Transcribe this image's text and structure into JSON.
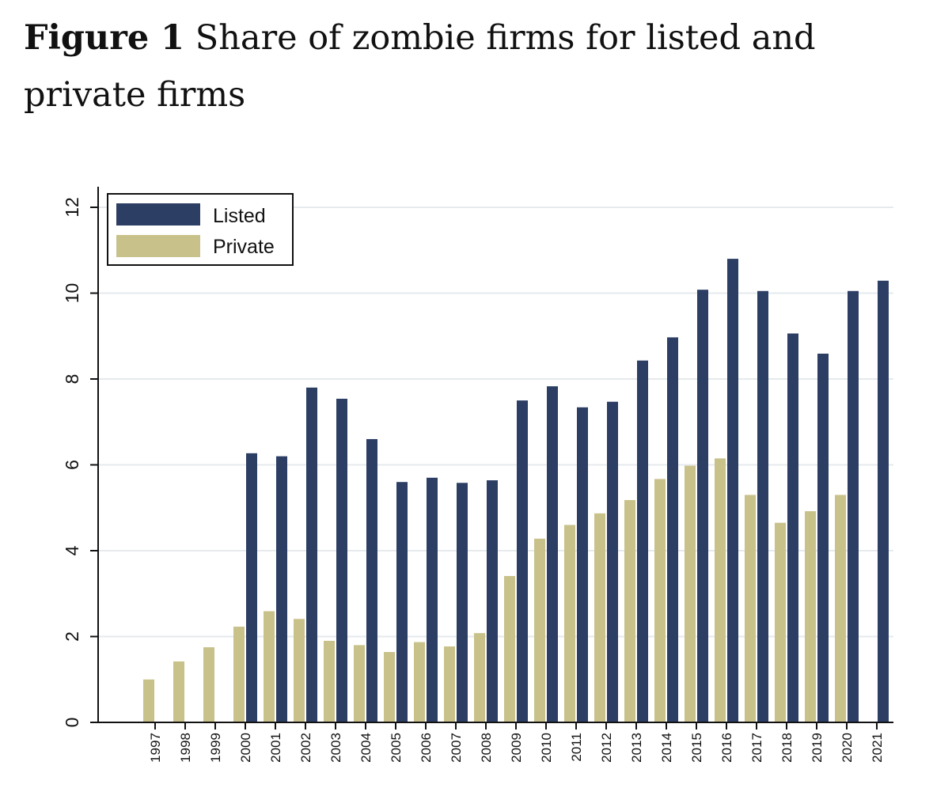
{
  "caption": {
    "label": "Figure 1",
    "text": "Share of zombie firms for listed and private firms"
  },
  "colors": {
    "listed": "#2c3e64",
    "private": "#c9c18a",
    "grid": "#e6eaec",
    "axis": "#111111"
  },
  "chart_data": {
    "type": "bar",
    "title": "",
    "xlabel": "",
    "ylabel": "",
    "ylim": [
      0,
      12.5
    ],
    "yticks": [
      0,
      2,
      4,
      6,
      8,
      10,
      12
    ],
    "grid": true,
    "legend_position": "top-left",
    "categories": [
      "1997",
      "1998",
      "1999",
      "2000",
      "2001",
      "2002",
      "2003",
      "2004",
      "2005",
      "2006",
      "2007",
      "2008",
      "2009",
      "2010",
      "2011",
      "2012",
      "2013",
      "2014",
      "2015",
      "2016",
      "2017",
      "2018",
      "2019",
      "2020",
      "2021"
    ],
    "series": [
      {
        "name": "Listed",
        "values": [
          null,
          null,
          null,
          6.27,
          6.2,
          7.8,
          7.54,
          6.6,
          5.6,
          5.7,
          5.58,
          5.64,
          7.5,
          7.83,
          7.34,
          7.47,
          8.43,
          8.97,
          10.08,
          10.8,
          10.05,
          9.06,
          8.59,
          10.05,
          10.29
        ]
      },
      {
        "name": "Private",
        "values": [
          1.0,
          1.42,
          1.75,
          2.23,
          2.59,
          2.41,
          1.9,
          1.8,
          1.64,
          1.87,
          1.77,
          2.08,
          3.41,
          4.28,
          4.6,
          4.87,
          5.18,
          5.67,
          5.98,
          6.15,
          5.3,
          4.65,
          4.92,
          5.3,
          null
        ]
      }
    ]
  }
}
